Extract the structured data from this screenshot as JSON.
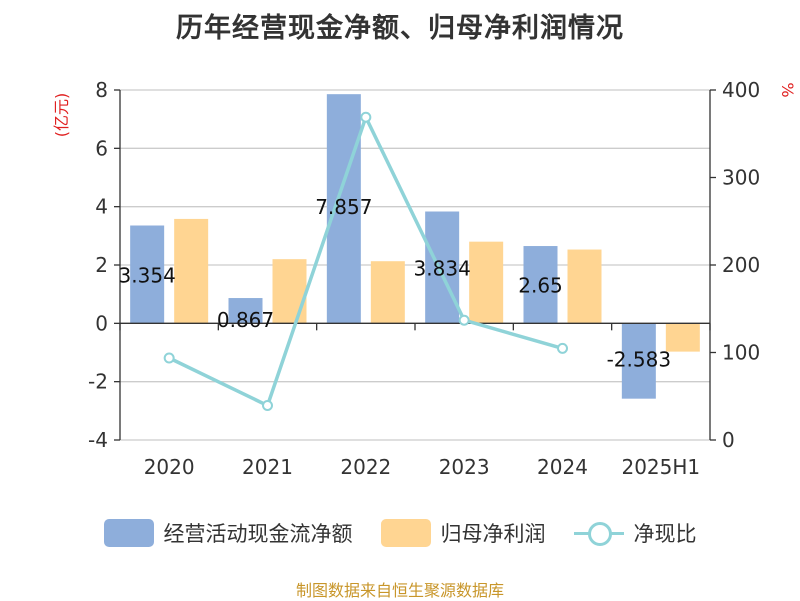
{
  "title": "历年经营现金净额、归母净利润情况",
  "left_unit": "(亿元)",
  "right_unit": "%",
  "source": "制图数据来自恒生聚源数据库",
  "colors": {
    "cash_flow": "#8eaedb",
    "net_profit": "#ffd592",
    "ratio": "#8fd3d8",
    "unit": "#e02020",
    "source": "#c8962a"
  },
  "chart_data": {
    "type": "bar",
    "title": "历年经营现金净额、归母净利润情况",
    "categories": [
      "2020",
      "2021",
      "2022",
      "2023",
      "2024",
      "2025H1"
    ],
    "ylim_left": [
      -4,
      8
    ],
    "yticks_left": [
      -4,
      -2,
      0,
      2,
      4,
      6,
      8
    ],
    "ylim_right": [
      0,
      400
    ],
    "yticks_right": [
      0,
      100,
      200,
      300,
      400
    ],
    "series": [
      {
        "name": "经营活动现金流净额",
        "type": "bar",
        "axis": "left",
        "values": [
          3.354,
          0.867,
          7.857,
          3.834,
          2.65,
          -2.583
        ],
        "labels": [
          "3.354",
          "0.867",
          "7.857",
          "3.834",
          "2.65",
          "-2.583"
        ]
      },
      {
        "name": "归母净利润",
        "type": "bar",
        "axis": "left",
        "values": [
          3.58,
          2.2,
          2.13,
          2.8,
          2.53,
          -0.97
        ]
      },
      {
        "name": "净现比",
        "type": "line",
        "axis": "right",
        "values": [
          93.7,
          39.4,
          368.9,
          136.9,
          104.7,
          null
        ]
      }
    ],
    "grid": true,
    "legend_position": "bottom"
  }
}
